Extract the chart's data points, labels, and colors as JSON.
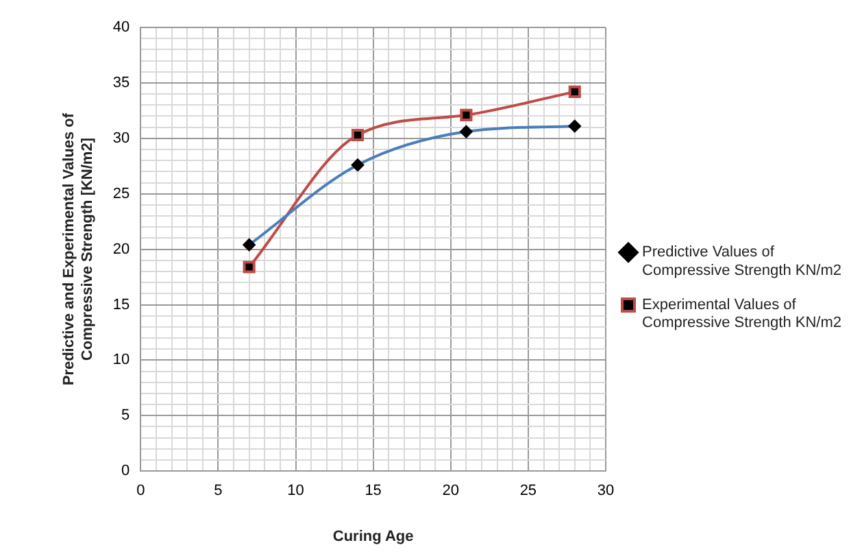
{
  "chart_data": {
    "type": "line",
    "xlabel": "Curing Age",
    "ylabel": "Predictive and Experimental Values of Compressive Strength [KN/m2]",
    "x": [
      7,
      14,
      21,
      28
    ],
    "series": [
      {
        "name": "Predictive Values of Compressive Strength KN/m2",
        "color": "#4a7ebb",
        "marker": "diamond",
        "values": [
          20.4,
          27.6,
          30.6,
          31.1
        ]
      },
      {
        "name": "Experimental Values of Compressive Strength KN/m2",
        "color": "#be4b48",
        "marker": "square",
        "values": [
          18.4,
          30.3,
          32.1,
          34.2
        ]
      }
    ],
    "xlim": [
      0,
      30
    ],
    "xticks": [
      0,
      {
        "value": 1,
        "label": null
      },
      {
        "value": 2,
        "label": null
      },
      {
        "value": 3,
        "label": null
      },
      {
        "value": 4,
        "label": null
      },
      5,
      {
        "value": 6,
        "label": null
      },
      {
        "value": 7,
        "label": null
      },
      {
        "value": 8,
        "label": null
      },
      {
        "value": 9,
        "label": null
      },
      10,
      {
        "value": 11,
        "label": null
      },
      {
        "value": 12,
        "label": null
      },
      {
        "value": 13,
        "label": null
      },
      {
        "value": 14,
        "label": null
      },
      15,
      {
        "value": 16,
        "label": null
      },
      {
        "value": 17,
        "label": null
      },
      {
        "value": 18,
        "label": null
      },
      {
        "value": 19,
        "label": null
      },
      20,
      {
        "value": 21,
        "label": null
      },
      {
        "value": 22,
        "label": null
      },
      {
        "value": 23,
        "label": null
      },
      {
        "value": 24,
        "label": null
      },
      25,
      {
        "value": 26,
        "label": null
      },
      {
        "value": 27,
        "label": null
      },
      {
        "value": 28,
        "label": null
      },
      {
        "value": 29,
        "label": null
      },
      30
    ],
    "ylim": [
      0,
      40
    ],
    "yticks": [
      0,
      {
        "value": 1,
        "label": null
      },
      {
        "value": 2,
        "label": null
      },
      {
        "value": 3,
        "label": null
      },
      {
        "value": 4,
        "label": null
      },
      5,
      {
        "value": 6,
        "label": null
      },
      {
        "value": 7,
        "label": null
      },
      {
        "value": 8,
        "label": null
      },
      {
        "value": 9,
        "label": null
      },
      10,
      {
        "value": 11,
        "label": null
      },
      {
        "value": 12,
        "label": null
      },
      {
        "value": 13,
        "label": null
      },
      {
        "value": 14,
        "label": null
      },
      15,
      {
        "value": 16,
        "label": null
      },
      {
        "value": 17,
        "label": null
      },
      {
        "value": 18,
        "label": null
      },
      {
        "value": 19,
        "label": null
      },
      20,
      {
        "value": 21,
        "label": null
      },
      {
        "value": 22,
        "label": null
      },
      {
        "value": 23,
        "label": null
      },
      {
        "value": 24,
        "label": null
      },
      25,
      {
        "value": 26,
        "label": null
      },
      {
        "value": 27,
        "label": null
      },
      {
        "value": 28,
        "label": null
      },
      {
        "value": 29,
        "label": null
      },
      30,
      {
        "value": 31,
        "label": null
      },
      {
        "value": 32,
        "label": null
      },
      {
        "value": 33,
        "label": null
      },
      {
        "value": 34,
        "label": null
      },
      35,
      {
        "value": 36,
        "label": null
      },
      {
        "value": 37,
        "label": null
      },
      {
        "value": 38,
        "label": null
      },
      {
        "value": 39,
        "label": null
      },
      40
    ],
    "grid": true,
    "legend": "right",
    "line_style": "solid"
  }
}
